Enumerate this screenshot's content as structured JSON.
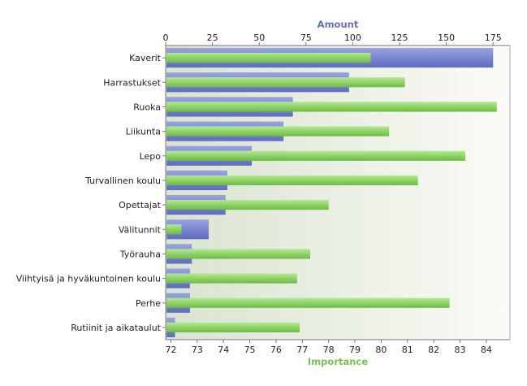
{
  "chart_data": {
    "type": "bar",
    "orientation": "horizontal",
    "categories": [
      "Kaverit",
      "Harrastukset",
      "Ruoka",
      "Liikunta",
      "Lepo",
      "Turvallinen koulu",
      "Opettajat",
      "Välitunnit",
      "Työrauha",
      "Viihtyisä ja hyväkuntoinen koulu",
      "Perhe",
      "Rutiinit ja aikataulut"
    ],
    "axes": {
      "top": {
        "label": "Amount",
        "ticks": [
          "0",
          "25",
          "50",
          "75",
          "100",
          "125",
          "150",
          "175"
        ],
        "range": [
          0,
          184
        ]
      },
      "bottom": {
        "label": "Importance",
        "ticks": [
          "72",
          "73",
          "74",
          "75",
          "76",
          "77",
          "78",
          "79",
          "80",
          "81",
          "82",
          "83",
          "84"
        ],
        "range": [
          71.8,
          84.9
        ]
      }
    },
    "series": [
      {
        "name": "Amount",
        "axis": "top",
        "color": "#7b86d2",
        "values": [
          175,
          98,
          68,
          63,
          46,
          33,
          32,
          23,
          14,
          13,
          13,
          5
        ]
      },
      {
        "name": "Importance",
        "axis": "bottom",
        "color": "#8fd266",
        "values": [
          79.6,
          80.9,
          84.4,
          80.3,
          83.2,
          81.4,
          78.0,
          72.4,
          77.3,
          76.8,
          82.6,
          76.9
        ]
      }
    ],
    "grid": false,
    "legend": "none",
    "colors": {
      "plot_start": "#d9e3cf",
      "plot_end": "#fbfbf7"
    }
  }
}
